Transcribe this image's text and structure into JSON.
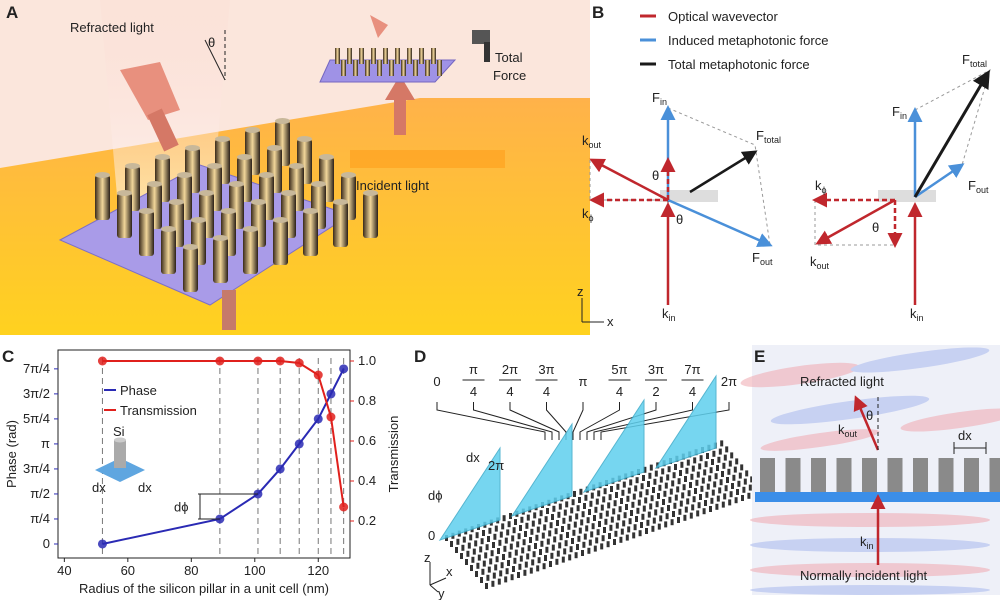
{
  "panel_letters": [
    "A",
    "B",
    "C",
    "D",
    "E"
  ],
  "panel_a": {
    "refracted_light": "Refracted light",
    "theta": "θ",
    "total_force": [
      "Total",
      "Force"
    ],
    "incident_light": "Incident light"
  },
  "panel_b": {
    "legend": [
      {
        "name": "Optical wavevector",
        "color": "#c0272d"
      },
      {
        "name": "Induced metaphotonic force",
        "color": "#4a90d9"
      },
      {
        "name": "Total metaphotonic force",
        "color": "#1a1a1a"
      }
    ],
    "left": [
      {
        "base": "F",
        "sub": "in"
      },
      {
        "base": "F",
        "sub": "total"
      },
      {
        "base": "k",
        "sub": "out"
      },
      "θ",
      {
        "base": "k",
        "sub": "ϕ"
      },
      "θ",
      {
        "base": "F",
        "sub": "out"
      },
      {
        "base": "k",
        "sub": "in"
      }
    ],
    "right": [
      {
        "base": "F",
        "sub": "total"
      },
      {
        "base": "F",
        "sub": "in"
      },
      {
        "base": "k",
        "sub": "ϕ"
      },
      {
        "base": "F",
        "sub": "out"
      },
      "θ",
      {
        "base": "k",
        "sub": "out"
      },
      {
        "base": "k",
        "sub": "in"
      }
    ],
    "axes": [
      "z",
      "x"
    ]
  },
  "chart_data": {
    "type": "line",
    "x": [
      52,
      89,
      101,
      108,
      114,
      120,
      124,
      128
    ],
    "series": [
      {
        "name": "Phase",
        "color": "#2a2ab4",
        "values": [
          0,
          0.7854,
          1.5708,
          2.3562,
          3.1416,
          3.927,
          4.7124,
          5.4978
        ]
      },
      {
        "name": "Transmission",
        "color": "#e0201c",
        "axis": "y2",
        "values": [
          1.0,
          1.0,
          1.0,
          1.0,
          0.99,
          0.93,
          0.72,
          0.27
        ]
      }
    ],
    "xlabel": "Radius of the silicon pillar in a unit cell (nm)",
    "ylabel": "Phase (rad)",
    "y2label": "Transmission",
    "xlim": [
      38,
      130
    ],
    "xticks": [
      40,
      60,
      80,
      100,
      120
    ],
    "ylim": [
      -0.44,
      6.09
    ],
    "yticks": [
      {
        "value": 0,
        "label": "0"
      },
      {
        "value": 0.7854,
        "label": "π/4"
      },
      {
        "value": 1.5708,
        "label": "π/2"
      },
      {
        "value": 2.3562,
        "label": "3π/4"
      },
      {
        "value": 3.1416,
        "label": "π"
      },
      {
        "value": 3.927,
        "label": "5π/4"
      },
      {
        "value": 4.7124,
        "label": "3π/2"
      },
      {
        "value": 5.4978,
        "label": "7π/4"
      }
    ],
    "y2lim": [
      0.015,
      1.055
    ],
    "y2ticks": [
      0.2,
      0.4,
      0.6,
      0.8,
      {
        "value": 1.0,
        "label": "1.0"
      }
    ],
    "annotations": [
      "dϕ"
    ],
    "inset_labels": [
      "Si",
      "dx",
      "dx"
    ]
  },
  "panel_d": {
    "phases": [
      "0",
      {
        "num": "π",
        "den": "4"
      },
      {
        "num": "2π",
        "den": "4"
      },
      {
        "num": "3π",
        "den": "4"
      },
      "π",
      {
        "num": "5π",
        "den": "4"
      },
      {
        "num": "3π",
        "den": "2"
      },
      {
        "num": "7π",
        "den": "4"
      },
      "2π"
    ],
    "labels": [
      "dx",
      "2π",
      "dϕ",
      "0"
    ],
    "axes": [
      "z",
      "x",
      "y"
    ]
  },
  "panel_e": {
    "refracted_light": "Refracted light",
    "theta": "θ",
    "k_out": {
      "base": "k",
      "sub": "out"
    },
    "dx": "dx",
    "k_in": {
      "base": "k",
      "sub": "in"
    },
    "incident_light": "Normally incident light"
  }
}
